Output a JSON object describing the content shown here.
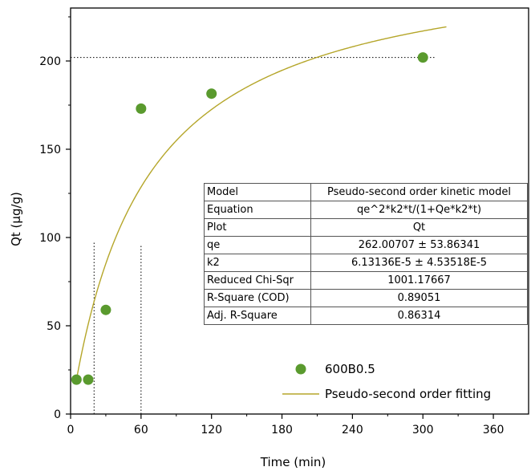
{
  "chart_data": {
    "type": "scatter",
    "xlabel": "Time (min)",
    "ylabel": "Qt (μg/g)",
    "xlim": [
      0,
      390
    ],
    "ylim": [
      0,
      230
    ],
    "xticks": [
      0,
      60,
      120,
      180,
      240,
      300,
      360
    ],
    "yticks": [
      0,
      50,
      100,
      150,
      200
    ],
    "grid": false,
    "legend_position": "bottom-right",
    "series": [
      {
        "name": "600B0.5",
        "kind": "scatter",
        "color": "#5a9a2e",
        "x": [
          5,
          15,
          30,
          60,
          120,
          300
        ],
        "y": [
          19.5,
          19.5,
          59,
          173,
          181.5,
          202
        ]
      },
      {
        "name": "Pseudo-second order fitting",
        "kind": "line",
        "color": "#b5a62a",
        "model": {
          "qe": 262.00707,
          "k2": 6.13136e-05,
          "x_start": 5,
          "x_end": 320
        }
      }
    ],
    "reference_lines": [
      {
        "orientation": "horizontal",
        "y": 202,
        "x_from": 0,
        "x_to": 310
      },
      {
        "orientation": "vertical",
        "x": 20,
        "y_from": 0,
        "y_to": 98
      },
      {
        "orientation": "vertical",
        "x": 60,
        "y_from": 0,
        "y_to": 96
      }
    ],
    "table": [
      {
        "key": "Model",
        "value": "Pseudo-second order kinetic model"
      },
      {
        "key": "Equation",
        "value": "qe^2*k2*t/(1+Qe*k2*t)"
      },
      {
        "key": "Plot",
        "value": "Qt"
      },
      {
        "key": "qe",
        "value": "262.00707 ± 53.86341"
      },
      {
        "key": "k2",
        "value": "6.13136E-5 ± 4.53518E-5"
      },
      {
        "key": "Reduced Chi-Sqr",
        "value": "1001.17667"
      },
      {
        "key": "R-Square (COD)",
        "value": "0.89051"
      },
      {
        "key": "Adj. R-Square",
        "value": "0.86314"
      }
    ]
  }
}
